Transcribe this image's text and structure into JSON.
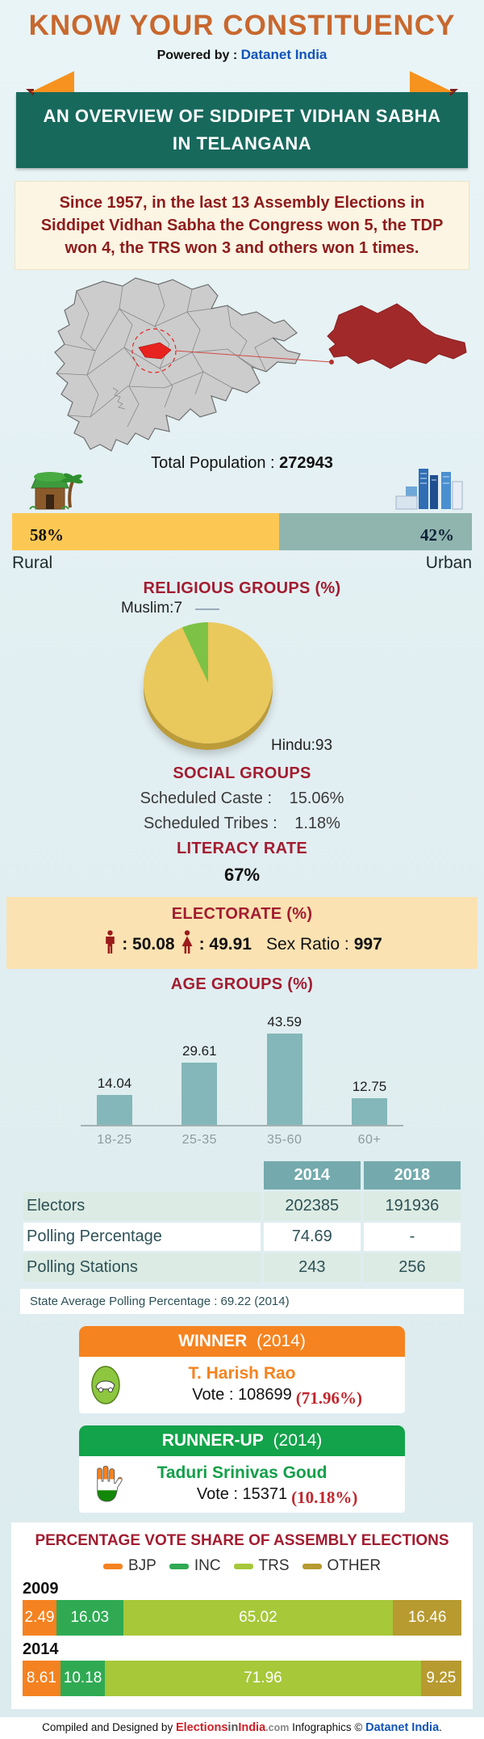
{
  "header": {
    "title": "KNOW YOUR CONSTITUENCY",
    "powered_prefix": "Powered by : ",
    "powered_brand": "Datanet India",
    "banner_line1": "AN OVERVIEW OF SIDDIPET VIDHAN SABHA",
    "banner_line2": "IN TELANGANA"
  },
  "summary": {
    "text": "Since 1957, in the last 13 Assembly Elections in Siddipet Vidhan Sabha the Congress won 5, the TDP won 4, the TRS won 3 and others won 1 times."
  },
  "population": {
    "label": "Total Population : ",
    "value": "272943",
    "rural_pct_label": "58%",
    "urban_pct_label": "42%",
    "rural_label": "Rural",
    "urban_label": "Urban"
  },
  "religious": {
    "title": "RELIGIOUS GROUPS (%)",
    "muslim_label": "Muslim:7",
    "hindu_label": "Hindu:93"
  },
  "social": {
    "title": "SOCIAL GROUPS",
    "rows": [
      {
        "label": "Scheduled Caste :",
        "value": "15.06%"
      },
      {
        "label": "Scheduled Tribes :",
        "value": "1.18%"
      }
    ]
  },
  "literacy": {
    "title": "LITERACY RATE",
    "value": "67%"
  },
  "electorate": {
    "title": "ELECTORATE (%)",
    "male_text": ": 50.08",
    "female_text": ": 49.91",
    "sex_ratio_label": "Sex Ratio :",
    "sex_ratio_value": "997"
  },
  "age_groups": {
    "title": "AGE GROUPS (%)"
  },
  "winner": {
    "header": "WINNER",
    "year": "(2014)",
    "name": "T. Harish Rao",
    "vote_text": "Vote : 108699",
    "vote_pct": "(71.96%)"
  },
  "runner_up": {
    "header": "RUNNER-UP",
    "year": "(2014)",
    "name": "Taduri Srinivas Goud",
    "vote_text": "Vote : 15371",
    "vote_pct": "(10.18%)"
  },
  "vote_share": {
    "title": "PERCENTAGE VOTE SHARE OF ASSEMBLY ELECTIONS"
  },
  "footer": {
    "prefix": "Compiled and Designed by ",
    "brand1_red1": "Elections",
    "brand1_mid": "in",
    "brand1_red2": "India",
    "brand1_suffix": ".com",
    "middle": " Infographics © ",
    "brand2": "Datanet India",
    "period": "."
  },
  "colors": {
    "accent_orange": "#f5831f",
    "accent_green": "#13a34a",
    "heading_red": "#a31c30",
    "banner_teal": "#17695c",
    "datanet_blue": "#1254b8",
    "highlight_red": "#e8231f",
    "constituency_maroon": "#a1292a"
  },
  "chart_data": [
    {
      "type": "bar",
      "subtype": "horizontal-split",
      "title": "Rural vs Urban population (%)",
      "categories": [
        "Rural",
        "Urban"
      ],
      "values": [
        58,
        42
      ],
      "colors": [
        "#fcc853",
        "#90b5af"
      ]
    },
    {
      "type": "pie",
      "title": "RELIGIOUS GROUPS (%)",
      "labels": [
        "Muslim",
        "Hindu"
      ],
      "values": [
        7,
        93
      ],
      "colors": [
        "#7dc246",
        "#e9c85c"
      ]
    },
    {
      "type": "bar",
      "title": "AGE GROUPS (%)",
      "categories": [
        "18-25",
        "25-35",
        "35-60",
        "60+"
      ],
      "values": [
        14.04,
        29.61,
        43.59,
        12.75
      ],
      "color": "#84b7b9",
      "ylim": [
        0,
        50
      ],
      "grid": false
    },
    {
      "type": "table",
      "columns": [
        "2014",
        "2018"
      ],
      "rows": [
        {
          "label": "Electors",
          "v2014": "202385",
          "v2018": "191936"
        },
        {
          "label": "Polling Percentage",
          "v2014": "74.69",
          "v2018": "-"
        },
        {
          "label": "Polling Stations",
          "v2014": "243",
          "v2018": "256"
        }
      ],
      "footnote": "State Average Polling Percentage : 69.22 (2014)"
    },
    {
      "type": "bar",
      "subtype": "stacked-horizontal",
      "title": "PERCENTAGE VOTE SHARE OF ASSEMBLY ELECTIONS",
      "categories": [
        "2009",
        "2014"
      ],
      "xlim": [
        0,
        100
      ],
      "legend_position": "top",
      "series": [
        {
          "name": "BJP",
          "color": "#f58220",
          "values": [
            2.49,
            8.61
          ]
        },
        {
          "name": "INC",
          "color": "#2faa53",
          "values": [
            16.03,
            10.18
          ]
        },
        {
          "name": "TRS",
          "color": "#a6c839",
          "values": [
            65.02,
            71.96
          ]
        },
        {
          "name": "OTHER",
          "color": "#b79a30",
          "values": [
            16.46,
            9.25
          ]
        }
      ]
    }
  ]
}
